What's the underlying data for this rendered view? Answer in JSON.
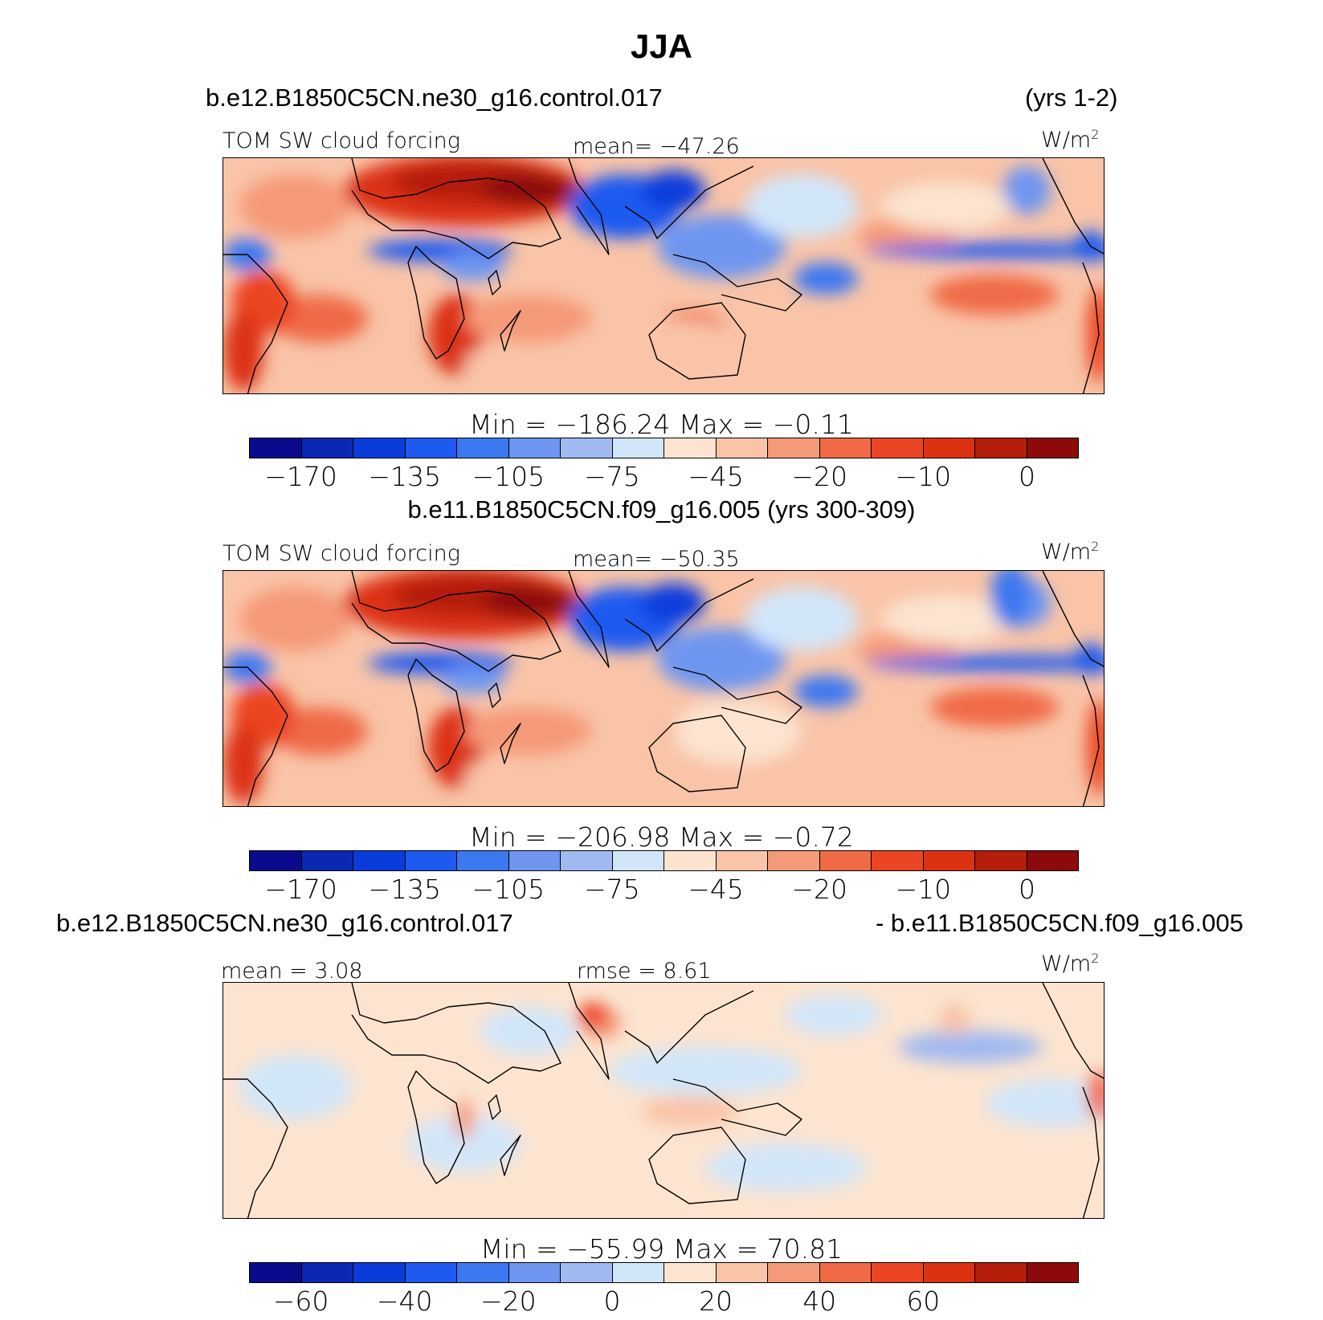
{
  "title": "JJA",
  "colorbar_colors": [
    "#0a0a8c",
    "#0a28b4",
    "#0a3cdc",
    "#1e5af0",
    "#3c78f0",
    "#6e96f0",
    "#a0b9f0",
    "#d2e6fa",
    "#fce4d0",
    "#f9c4a8",
    "#f59a78",
    "#f06a46",
    "#eb4523",
    "#dc3212",
    "#b41e0a",
    "#8c0a0a"
  ],
  "panels": [
    {
      "header_left": "b.e12.B1850C5CN.ne30_g16.control.017",
      "header_right": "(yrs 1-2)",
      "label_left": "TOM SW cloud forcing",
      "label_center": "mean= −47.26",
      "units": "W/m",
      "units_sup": "2",
      "minmax": "Min  =  −186.24  Max  =   −0.11",
      "ticks": [
        "−170",
        "−135",
        "−105",
        "−75",
        "−45",
        "−20",
        "−10",
        "0"
      ],
      "variant": "a"
    },
    {
      "header_left": "b.e11.B1850C5CN.f09_g16.005 (yrs 300-309)",
      "header_right": "",
      "label_left": "TOM SW cloud forcing",
      "label_center": "mean= −50.35",
      "units": "W/m",
      "units_sup": "2",
      "minmax": "Min  =  −206.98  Max  =   −0.72",
      "ticks": [
        "−170",
        "−135",
        "−105",
        "−75",
        "−45",
        "−20",
        "−10",
        "0"
      ],
      "variant": "b"
    },
    {
      "header_left": "b.e12.B1850C5CN.ne30_g16.control.017",
      "header_right": "- b.e11.B1850C5CN.f09_g16.005",
      "label_left": "mean  =    3.08",
      "label_center": "rmse  =    8.61",
      "units": "W/m",
      "units_sup": "2",
      "minmax": "Min  =  −55.99  Max  =   70.81",
      "ticks": [
        "−60",
        "−40",
        "−20",
        "0",
        "20",
        "40",
        "60"
      ],
      "variant": "diff"
    }
  ]
}
